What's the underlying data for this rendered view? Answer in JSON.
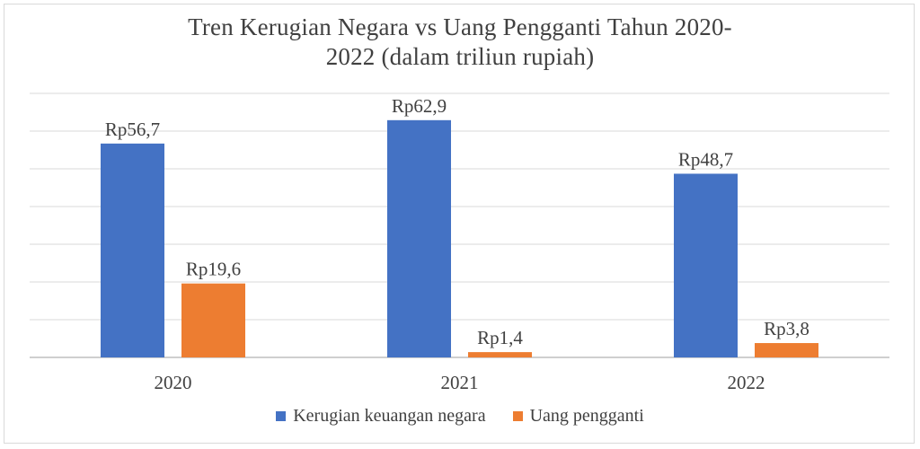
{
  "chart_data": {
    "type": "bar",
    "title_line1": "Tren Kerugian Negara vs Uang Pengganti Tahun 2020-",
    "title_line2": "2022 (dalam triliun rupiah)",
    "categories": [
      "2020",
      "2021",
      "2022"
    ],
    "series": [
      {
        "name": "Kerugian keuangan negara",
        "color": "#4472C4",
        "values": [
          56.7,
          62.9,
          48.7
        ],
        "labels": [
          "Rp56,7",
          "Rp62,9",
          "Rp48,7"
        ]
      },
      {
        "name": "Uang pengganti",
        "color": "#ED7D31",
        "values": [
          19.6,
          1.4,
          3.8
        ],
        "labels": [
          "Rp19,6",
          "Rp1,4",
          "Rp3,8"
        ]
      }
    ],
    "ylim": [
      0,
      70
    ],
    "grid": true,
    "legend_position": "bottom"
  }
}
